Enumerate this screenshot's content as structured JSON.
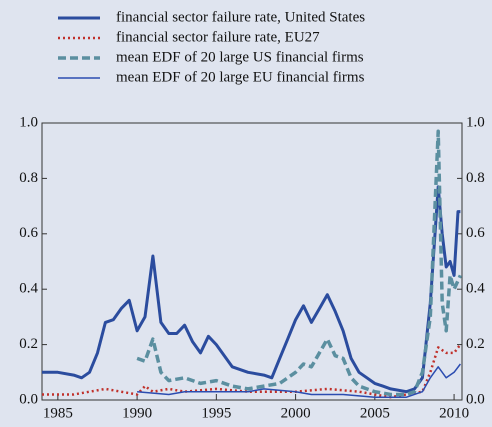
{
  "chart_data": {
    "type": "line",
    "xlim": [
      1984,
      2010.5
    ],
    "xticks": [
      1985,
      1990,
      1995,
      2000,
      2005,
      2010
    ],
    "ylim": [
      0,
      1
    ],
    "yticks": [
      {
        "value": 0,
        "label": "0.0"
      },
      0.2,
      0.4,
      0.6,
      0.8,
      {
        "value": 1,
        "label": "1.0"
      }
    ],
    "y2lim": [
      0,
      1
    ],
    "y2ticks": [
      {
        "value": 0,
        "label": "0.0"
      },
      0.2,
      0.4,
      0.6,
      0.8,
      {
        "value": 1,
        "label": "1.0"
      }
    ],
    "series": [
      {
        "name": "financial sector failure rate, United States",
        "color": "#2b4c9e",
        "style": "solid",
        "width": 3,
        "x": [
          1984,
          1985,
          1986,
          1986.5,
          1987,
          1987.5,
          1988,
          1988.5,
          1989,
          1989.5,
          1990,
          1990.5,
          1991,
          1991.5,
          1992,
          1992.5,
          1993,
          1993.5,
          1994,
          1994.5,
          1995,
          1995.5,
          1996,
          1997,
          1998,
          1998.5,
          1999,
          1999.5,
          2000,
          2000.5,
          2001,
          2001.5,
          2002,
          2002.5,
          2003,
          2003.5,
          2004,
          2004.5,
          2005,
          2005.5,
          2006,
          2007,
          2007.5,
          2008,
          2008.5,
          2009,
          2009.25,
          2009.5,
          2009.75,
          2010,
          2010.25,
          2010.4
        ],
        "values": [
          0.1,
          0.1,
          0.09,
          0.08,
          0.1,
          0.17,
          0.28,
          0.29,
          0.33,
          0.36,
          0.25,
          0.3,
          0.52,
          0.28,
          0.24,
          0.24,
          0.27,
          0.21,
          0.17,
          0.23,
          0.2,
          0.16,
          0.12,
          0.1,
          0.09,
          0.08,
          0.15,
          0.22,
          0.29,
          0.34,
          0.28,
          0.33,
          0.38,
          0.32,
          0.25,
          0.15,
          0.1,
          0.08,
          0.06,
          0.05,
          0.04,
          0.03,
          0.04,
          0.08,
          0.35,
          0.77,
          0.6,
          0.48,
          0.5,
          0.45,
          0.68,
          0.68
        ]
      },
      {
        "name": "financial sector failure rate, EU27",
        "color": "#c0302a",
        "style": "dotted",
        "width": 2.5,
        "x": [
          1984,
          1986,
          1987,
          1988,
          1989,
          1990,
          1990.5,
          1991,
          1992,
          1993,
          1995,
          1997,
          2000,
          2002,
          2004,
          2006,
          2008,
          2008.5,
          2009,
          2009.5,
          2010,
          2010.4
        ],
        "values": [
          0.02,
          0.02,
          0.03,
          0.04,
          0.03,
          0.02,
          0.05,
          0.03,
          0.04,
          0.03,
          0.04,
          0.03,
          0.03,
          0.04,
          0.03,
          0.01,
          0.03,
          0.1,
          0.19,
          0.17,
          0.17,
          0.2
        ]
      },
      {
        "name": "mean EDF of 20 large US financial firms",
        "color": "#5b8fa0",
        "style": "dashed",
        "width": 3.5,
        "x": [
          1990,
          1990.5,
          1991,
          1991.5,
          1992,
          1993,
          1994,
          1995,
          1996,
          1997,
          1998,
          1999,
          2000,
          2000.5,
          2001,
          2001.5,
          2002,
          2002.5,
          2003,
          2003.5,
          2004,
          2005,
          2006,
          2007,
          2007.5,
          2008,
          2008.5,
          2009,
          2009.25,
          2009.5,
          2009.75,
          2010,
          2010.4
        ],
        "values": [
          0.15,
          0.14,
          0.22,
          0.1,
          0.07,
          0.08,
          0.06,
          0.07,
          0.05,
          0.04,
          0.05,
          0.06,
          0.1,
          0.13,
          0.12,
          0.17,
          0.22,
          0.16,
          0.15,
          0.08,
          0.05,
          0.03,
          0.02,
          0.02,
          0.03,
          0.1,
          0.3,
          0.97,
          0.35,
          0.25,
          0.45,
          0.4,
          0.45
        ]
      },
      {
        "name": "mean EDF of 20 large EU financial firms",
        "color": "#2b4cb0",
        "style": "solid",
        "width": 1.5,
        "x": [
          1990,
          1992,
          1993,
          1995,
          1997,
          1998,
          2000,
          2001,
          2003,
          2005,
          2007,
          2008,
          2008.5,
          2009,
          2009.5,
          2010,
          2010.4
        ],
        "values": [
          0.03,
          0.02,
          0.03,
          0.03,
          0.03,
          0.04,
          0.03,
          0.02,
          0.02,
          0.01,
          0.01,
          0.03,
          0.08,
          0.12,
          0.08,
          0.1,
          0.13
        ]
      }
    ]
  }
}
